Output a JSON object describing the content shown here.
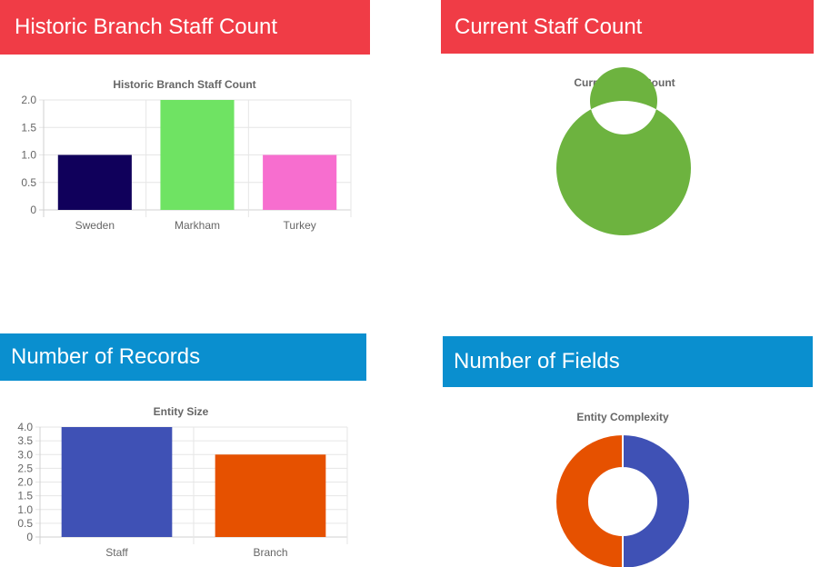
{
  "panels": [
    {
      "header": "Historic Branch Staff Count",
      "color": "#f03c46"
    },
    {
      "header": "Current Staff Count",
      "color": "#f03c46"
    },
    {
      "header": "Number of Records",
      "color": "#0a8fcf"
    },
    {
      "header": "Number of Fields",
      "color": "#0a8fcf"
    }
  ],
  "chart_data": [
    {
      "type": "bar",
      "title": "Historic Branch Staff Count",
      "categories": [
        "Sweden",
        "Markham",
        "Turkey"
      ],
      "values": [
        1,
        2,
        1
      ],
      "colors": [
        "#10005b",
        "#6fe363",
        "#f76ecf"
      ],
      "ylim": [
        0,
        2
      ],
      "yticks": [
        "0",
        "0.5",
        "1.0",
        "1.5",
        "2.0"
      ],
      "grid": true,
      "legend": "none"
    },
    {
      "type": "pie",
      "title": "Current Staff Count",
      "values": [
        1
      ],
      "colors": [
        "#6db33f"
      ],
      "legend": "none"
    },
    {
      "type": "bar",
      "title": "Entity Size",
      "categories": [
        "Staff",
        "Branch"
      ],
      "values": [
        4,
        3
      ],
      "colors": [
        "#3f51b5",
        "#e65100"
      ],
      "ylim": [
        0,
        4
      ],
      "yticks": [
        "0",
        "0.5",
        "1.0",
        "1.5",
        "2.0",
        "2.5",
        "3.0",
        "3.5",
        "4.0"
      ],
      "grid": true,
      "legend": "none"
    },
    {
      "type": "pie",
      "title": "Entity Complexity",
      "values": [
        1,
        1
      ],
      "colors": [
        "#3f51b5",
        "#e65100"
      ],
      "legend": "none"
    }
  ]
}
